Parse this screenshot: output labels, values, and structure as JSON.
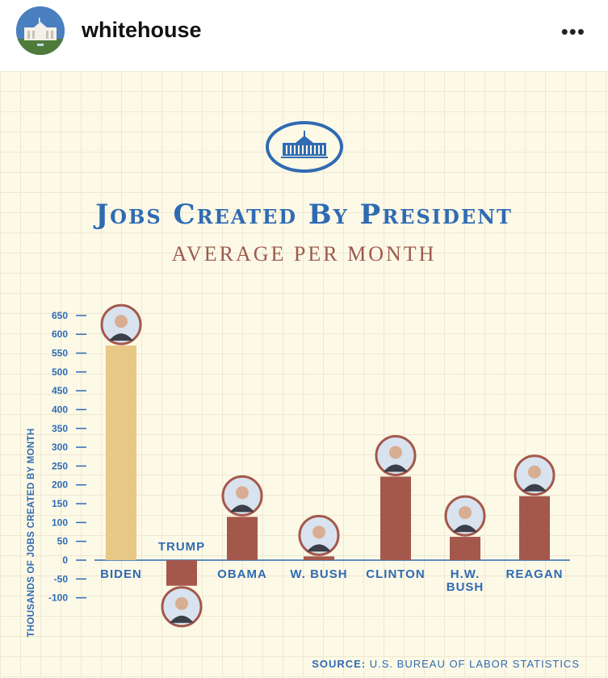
{
  "header": {
    "username": "whitehouse",
    "more_icon": "•••"
  },
  "colors": {
    "accent_blue": "#2f6bb3",
    "highlight_bar": "#e7c886",
    "bar": "#a4584b",
    "subtitle": "#9b5a4c",
    "background": "#fdf9e7"
  },
  "icons": [
    "white-house-icon",
    "more-options-icon"
  ],
  "chart_data": {
    "type": "bar",
    "title": "Jobs Created By President",
    "subtitle": "AVERAGE PER MONTH",
    "ylabel": "THOUSANDS OF JOBS CREATED BY MONTH",
    "xlabel": "",
    "ylim": [
      -100,
      650
    ],
    "yticks": [
      650,
      600,
      550,
      500,
      450,
      400,
      350,
      300,
      250,
      200,
      150,
      100,
      50,
      0,
      -50,
      -100
    ],
    "categories": [
      "BIDEN",
      "TRUMP",
      "OBAMA",
      "W. BUSH",
      "CLINTON",
      "H.W. BUSH",
      "REAGAN"
    ],
    "values": [
      570,
      -68,
      115,
      10,
      222,
      62,
      170
    ],
    "highlight_category": "BIDEN",
    "grid": true,
    "legend": "none"
  },
  "source": {
    "label": "SOURCE:",
    "text": "U.S. BUREAU OF LABOR STATISTICS"
  }
}
